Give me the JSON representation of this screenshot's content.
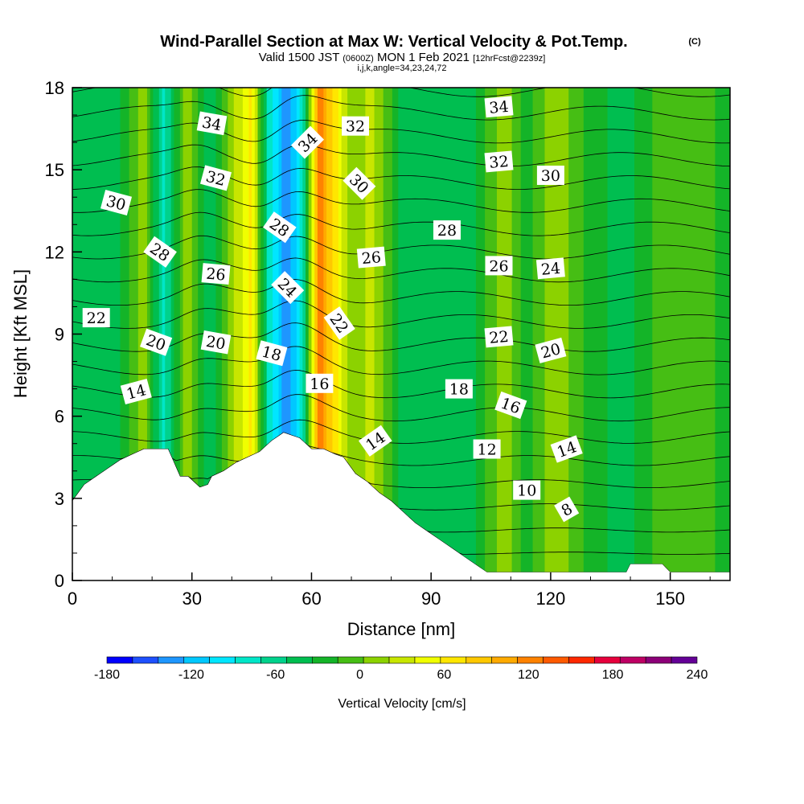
{
  "header": {
    "title": "Wind-Parallel Section at Max W: Vertical Velocity & Pot.Temp.",
    "copyright": "(C)",
    "valid_prefix": "Valid 1500 JST",
    "valid_utc": "(0600Z)",
    "valid_date": "MON 1 Feb 2021",
    "forecast": "[12hrFcst@2239z]",
    "indices": "i,j,k,angle=34,23,24,72"
  },
  "chart_data": {
    "type": "heatmap",
    "xlabel": "Distance [nm]",
    "ylabel": "Height [Kft MSL]",
    "xlim": [
      0,
      165
    ],
    "ylim": [
      0,
      18
    ],
    "x_ticks": [
      0,
      30,
      60,
      90,
      120,
      150
    ],
    "y_ticks": [
      0,
      3,
      6,
      9,
      12,
      15,
      18
    ],
    "grid": false,
    "colorbar": {
      "label": "Vertical Velocity [cm/s]",
      "tick_labels": [
        "-180",
        "-120",
        "-60",
        "0",
        "60",
        "120",
        "180",
        "240"
      ],
      "tick_values": [
        -180,
        -120,
        -60,
        0,
        60,
        120,
        180,
        240
      ],
      "min": -180,
      "max": 240,
      "step": 20,
      "colors": [
        "#0000ff",
        "#1e50ff",
        "#1e96ff",
        "#00c8ff",
        "#00e6ff",
        "#00e6c8",
        "#00d28c",
        "#00be50",
        "#14b428",
        "#46be14",
        "#8cd200",
        "#c8e600",
        "#f0ff00",
        "#ffe600",
        "#ffc800",
        "#ffaa00",
        "#ff8200",
        "#ff5a00",
        "#ff2800",
        "#e6003c",
        "#be0064",
        "#8c0078",
        "#640096"
      ]
    },
    "terrain_profile": {
      "x": [
        0,
        3,
        6,
        9,
        12,
        15,
        18,
        20,
        24,
        27,
        29,
        32,
        34,
        35,
        38,
        41,
        44,
        47,
        50,
        53,
        57,
        60,
        63,
        66,
        68,
        71,
        74,
        77,
        80,
        83,
        86,
        89,
        92,
        95,
        98,
        101,
        104,
        106,
        115,
        130,
        139,
        140,
        148,
        150,
        165
      ],
      "height": [
        2.9,
        3.5,
        3.8,
        4.1,
        4.4,
        4.6,
        4.8,
        4.8,
        4.8,
        3.8,
        3.8,
        3.4,
        3.5,
        3.8,
        4.0,
        4.3,
        4.5,
        4.7,
        5.1,
        5.4,
        5.2,
        4.8,
        4.8,
        4.6,
        4.5,
        3.9,
        3.6,
        3.2,
        2.9,
        2.5,
        2.1,
        1.8,
        1.5,
        1.2,
        0.9,
        0.6,
        0.3,
        0.3,
        0.3,
        0.3,
        0.3,
        0.6,
        0.6,
        0.3,
        0.3
      ]
    },
    "vertical_velocity_columns": [
      {
        "x": 0,
        "w": -20
      },
      {
        "x": 10,
        "w": -40
      },
      {
        "x": 18,
        "w": 30
      },
      {
        "x": 23,
        "w": -70
      },
      {
        "x": 29,
        "w": 40
      },
      {
        "x": 34,
        "w": -40
      },
      {
        "x": 39,
        "w": 20
      },
      {
        "x": 45,
        "w": 90
      },
      {
        "x": 49,
        "w": -60
      },
      {
        "x": 54,
        "w": -140
      },
      {
        "x": 58,
        "w": -60
      },
      {
        "x": 62,
        "w": 150
      },
      {
        "x": 66,
        "w": 90
      },
      {
        "x": 70,
        "w": 20
      },
      {
        "x": 75,
        "w": 50
      },
      {
        "x": 82,
        "w": -20
      },
      {
        "x": 90,
        "w": -40
      },
      {
        "x": 100,
        "w": -30
      },
      {
        "x": 108,
        "w": 35
      },
      {
        "x": 114,
        "w": -10
      },
      {
        "x": 121,
        "w": 40
      },
      {
        "x": 130,
        "w": -10
      },
      {
        "x": 139,
        "w": -30
      },
      {
        "x": 147,
        "w": 5
      },
      {
        "x": 156,
        "w": 15
      },
      {
        "x": 165,
        "w": -10
      }
    ],
    "theta_contours": {
      "levels_from": -6,
      "levels_to": 46,
      "levels_step": 2,
      "labels": [
        {
          "text": "34",
          "x": 35,
          "y": 16.7,
          "angle": 10
        },
        {
          "text": "34",
          "x": 59,
          "y": 16.0,
          "angle": -45
        },
        {
          "text": "32",
          "x": 71,
          "y": 16.6,
          "angle": 0
        },
        {
          "text": "34",
          "x": 107,
          "y": 17.3,
          "angle": -5
        },
        {
          "text": "32",
          "x": 36,
          "y": 14.7,
          "angle": 15
        },
        {
          "text": "30",
          "x": 72,
          "y": 14.5,
          "angle": 45
        },
        {
          "text": "32",
          "x": 107,
          "y": 15.3,
          "angle": -5
        },
        {
          "text": "30",
          "x": 120,
          "y": 14.8,
          "angle": 0
        },
        {
          "text": "30",
          "x": 11,
          "y": 13.8,
          "angle": 15
        },
        {
          "text": "28",
          "x": 52,
          "y": 12.9,
          "angle": 35
        },
        {
          "text": "28",
          "x": 94,
          "y": 12.8,
          "angle": 0
        },
        {
          "text": "28",
          "x": 22,
          "y": 12.0,
          "angle": 35
        },
        {
          "text": "26",
          "x": 36,
          "y": 11.2,
          "angle": 5
        },
        {
          "text": "26",
          "x": 75,
          "y": 11.8,
          "angle": -5
        },
        {
          "text": "26",
          "x": 107,
          "y": 11.5,
          "angle": 0
        },
        {
          "text": "24",
          "x": 54,
          "y": 10.7,
          "angle": 45
        },
        {
          "text": "24",
          "x": 120,
          "y": 11.4,
          "angle": -5
        },
        {
          "text": "22",
          "x": 6,
          "y": 9.6,
          "angle": 0
        },
        {
          "text": "22",
          "x": 67,
          "y": 9.4,
          "angle": 55
        },
        {
          "text": "22",
          "x": 107,
          "y": 8.9,
          "angle": -5
        },
        {
          "text": "20",
          "x": 21,
          "y": 8.7,
          "angle": 20
        },
        {
          "text": "20",
          "x": 36,
          "y": 8.7,
          "angle": 10
        },
        {
          "text": "20",
          "x": 120,
          "y": 8.4,
          "angle": -15
        },
        {
          "text": "18",
          "x": 50,
          "y": 8.3,
          "angle": 15
        },
        {
          "text": "18",
          "x": 97,
          "y": 7.0,
          "angle": 0
        },
        {
          "text": "16",
          "x": 62,
          "y": 7.2,
          "angle": 0
        },
        {
          "text": "16",
          "x": 110,
          "y": 6.4,
          "angle": 20
        },
        {
          "text": "14",
          "x": 16,
          "y": 6.9,
          "angle": -15
        },
        {
          "text": "14",
          "x": 76,
          "y": 5.1,
          "angle": -35
        },
        {
          "text": "14",
          "x": 124,
          "y": 4.8,
          "angle": -20
        },
        {
          "text": "12",
          "x": 104,
          "y": 4.8,
          "angle": 0
        },
        {
          "text": "10",
          "x": 114,
          "y": 3.3,
          "angle": 0
        },
        {
          "text": "8",
          "x": 124,
          "y": 2.6,
          "angle": -30
        }
      ]
    }
  }
}
